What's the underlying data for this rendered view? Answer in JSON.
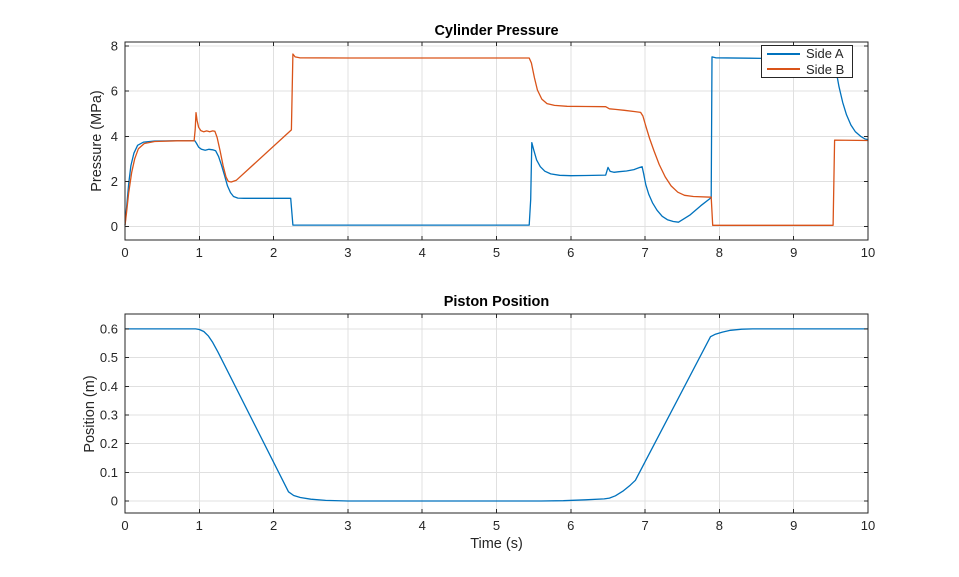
{
  "style": {
    "background": "#ffffff",
    "axis_color": "#262626",
    "grid_color": "#e0e0e0",
    "tick_label_color": "#262626",
    "title_color": "#000000"
  },
  "chart_data": [
    {
      "type": "line",
      "title": "Cylinder Pressure",
      "xlabel": "",
      "ylabel": "Pressure (MPa)",
      "xlim": [
        0,
        10
      ],
      "ylim": [
        -0.6,
        8.18
      ],
      "xticks": [
        0,
        1,
        2,
        3,
        4,
        5,
        6,
        7,
        8,
        9,
        10
      ],
      "xtick_labels": [
        "0",
        "1",
        "2",
        "3",
        "4",
        "5",
        "6",
        "7",
        "8",
        "9",
        "10"
      ],
      "yticks": [
        0,
        2,
        4,
        6,
        8
      ],
      "ytick_labels": [
        "0",
        "2",
        "4",
        "6",
        "8"
      ],
      "grid": true,
      "legend": {
        "position": "northeast",
        "entries": [
          "Side A",
          "Side B"
        ]
      },
      "series": [
        {
          "name": "Side A",
          "color": "#0072BD",
          "points": [
            [
              0,
              0.05
            ],
            [
              0.02,
              0.8
            ],
            [
              0.05,
              1.9
            ],
            [
              0.08,
              2.7
            ],
            [
              0.12,
              3.25
            ],
            [
              0.17,
              3.6
            ],
            [
              0.25,
              3.74
            ],
            [
              0.4,
              3.79
            ],
            [
              0.7,
              3.8
            ],
            [
              0.94,
              3.8
            ],
            [
              0.96,
              3.7
            ],
            [
              0.99,
              3.52
            ],
            [
              1.03,
              3.42
            ],
            [
              1.08,
              3.38
            ],
            [
              1.13,
              3.42
            ],
            [
              1.18,
              3.4
            ],
            [
              1.22,
              3.36
            ],
            [
              1.26,
              3.1
            ],
            [
              1.3,
              2.7
            ],
            [
              1.34,
              2.25
            ],
            [
              1.38,
              1.8
            ],
            [
              1.42,
              1.5
            ],
            [
              1.46,
              1.33
            ],
            [
              1.52,
              1.26
            ],
            [
              1.6,
              1.25
            ],
            [
              2.23,
              1.25
            ],
            [
              2.26,
              0.06
            ],
            [
              5.44,
              0.06
            ],
            [
              5.46,
              1.2
            ],
            [
              5.475,
              3.72
            ],
            [
              5.5,
              3.4
            ],
            [
              5.54,
              2.95
            ],
            [
              5.59,
              2.65
            ],
            [
              5.65,
              2.45
            ],
            [
              5.73,
              2.33
            ],
            [
              5.85,
              2.27
            ],
            [
              6.0,
              2.25
            ],
            [
              6.2,
              2.26
            ],
            [
              6.47,
              2.28
            ],
            [
              6.5,
              2.62
            ],
            [
              6.53,
              2.44
            ],
            [
              6.58,
              2.4
            ],
            [
              6.65,
              2.43
            ],
            [
              6.75,
              2.46
            ],
            [
              6.85,
              2.52
            ],
            [
              6.93,
              2.62
            ],
            [
              6.96,
              2.65
            ],
            [
              6.98,
              2.35
            ],
            [
              7.01,
              1.85
            ],
            [
              7.05,
              1.42
            ],
            [
              7.1,
              1.05
            ],
            [
              7.16,
              0.72
            ],
            [
              7.23,
              0.45
            ],
            [
              7.3,
              0.3
            ],
            [
              7.38,
              0.22
            ],
            [
              7.45,
              0.19
            ],
            [
              7.6,
              0.5
            ],
            [
              7.75,
              0.92
            ],
            [
              7.89,
              1.28
            ],
            [
              7.9,
              7.52
            ],
            [
              7.95,
              7.48
            ],
            [
              8.4,
              7.46
            ],
            [
              9.0,
              7.44
            ],
            [
              9.53,
              7.44
            ],
            [
              9.57,
              6.9
            ],
            [
              9.61,
              6.2
            ],
            [
              9.66,
              5.5
            ],
            [
              9.71,
              4.95
            ],
            [
              9.77,
              4.5
            ],
            [
              9.83,
              4.2
            ],
            [
              9.9,
              4.0
            ],
            [
              9.96,
              3.88
            ],
            [
              10,
              3.85
            ]
          ]
        },
        {
          "name": "Side B",
          "color": "#D95319",
          "points": [
            [
              0,
              0.05
            ],
            [
              0.02,
              0.6
            ],
            [
              0.05,
              1.5
            ],
            [
              0.09,
              2.4
            ],
            [
              0.13,
              3.0
            ],
            [
              0.18,
              3.45
            ],
            [
              0.26,
              3.68
            ],
            [
              0.4,
              3.77
            ],
            [
              0.7,
              3.8
            ],
            [
              0.93,
              3.8
            ],
            [
              0.945,
              4.3
            ],
            [
              0.955,
              5.05
            ],
            [
              0.97,
              4.7
            ],
            [
              0.99,
              4.4
            ],
            [
              1.02,
              4.25
            ],
            [
              1.06,
              4.2
            ],
            [
              1.1,
              4.24
            ],
            [
              1.14,
              4.2
            ],
            [
              1.18,
              4.24
            ],
            [
              1.21,
              4.22
            ],
            [
              1.24,
              3.95
            ],
            [
              1.28,
              3.35
            ],
            [
              1.32,
              2.7
            ],
            [
              1.36,
              2.2
            ],
            [
              1.39,
              2.0
            ],
            [
              1.43,
              1.97
            ],
            [
              1.5,
              2.05
            ],
            [
              2.24,
              4.28
            ],
            [
              2.26,
              7.65
            ],
            [
              2.29,
              7.52
            ],
            [
              2.35,
              7.48
            ],
            [
              3.0,
              7.47
            ],
            [
              5.44,
              7.47
            ],
            [
              5.47,
              7.25
            ],
            [
              5.51,
              6.6
            ],
            [
              5.55,
              6.05
            ],
            [
              5.61,
              5.65
            ],
            [
              5.68,
              5.45
            ],
            [
              5.78,
              5.37
            ],
            [
              5.95,
              5.33
            ],
            [
              6.2,
              5.32
            ],
            [
              6.47,
              5.31
            ],
            [
              6.52,
              5.22
            ],
            [
              6.6,
              5.19
            ],
            [
              6.72,
              5.15
            ],
            [
              6.85,
              5.1
            ],
            [
              6.94,
              5.06
            ],
            [
              6.97,
              4.9
            ],
            [
              7.01,
              4.45
            ],
            [
              7.06,
              3.9
            ],
            [
              7.12,
              3.35
            ],
            [
              7.19,
              2.75
            ],
            [
              7.27,
              2.2
            ],
            [
              7.35,
              1.8
            ],
            [
              7.44,
              1.52
            ],
            [
              7.53,
              1.38
            ],
            [
              7.65,
              1.33
            ],
            [
              7.89,
              1.3
            ],
            [
              7.91,
              0.05
            ],
            [
              9.53,
              0.05
            ],
            [
              9.55,
              3.83
            ],
            [
              10,
              3.81
            ]
          ]
        }
      ]
    },
    {
      "type": "line",
      "title": "Piston Position",
      "xlabel": "Time (s)",
      "ylabel": "Position (m)",
      "xlim": [
        0,
        10
      ],
      "ylim": [
        -0.042,
        0.652
      ],
      "xticks": [
        0,
        1,
        2,
        3,
        4,
        5,
        6,
        7,
        8,
        9,
        10
      ],
      "xtick_labels": [
        "0",
        "1",
        "2",
        "3",
        "4",
        "5",
        "6",
        "7",
        "8",
        "9",
        "10"
      ],
      "yticks": [
        0,
        0.1,
        0.2,
        0.3,
        0.4,
        0.5,
        0.6
      ],
      "ytick_labels": [
        "0",
        "0.1",
        "0.2",
        "0.3",
        "0.4",
        "0.5",
        "0.6"
      ],
      "grid": true,
      "series": [
        {
          "name": "Position",
          "color": "#0072BD",
          "points": [
            [
              0,
              0.6
            ],
            [
              0.95,
              0.6
            ],
            [
              1.0,
              0.598
            ],
            [
              1.06,
              0.591
            ],
            [
              1.12,
              0.576
            ],
            [
              1.18,
              0.553
            ],
            [
              1.25,
              0.52
            ],
            [
              2.2,
              0.032
            ],
            [
              2.27,
              0.019
            ],
            [
              2.36,
              0.012
            ],
            [
              2.5,
              0.006
            ],
            [
              2.7,
              0.002
            ],
            [
              3.0,
              0.0
            ],
            [
              5.6,
              0.0
            ],
            [
              5.9,
              0.001
            ],
            [
              6.2,
              0.004
            ],
            [
              6.45,
              0.007
            ],
            [
              6.52,
              0.01
            ],
            [
              6.6,
              0.018
            ],
            [
              6.7,
              0.034
            ],
            [
              6.8,
              0.055
            ],
            [
              6.87,
              0.072
            ],
            [
              7.88,
              0.573
            ],
            [
              7.94,
              0.581
            ],
            [
              8.04,
              0.589
            ],
            [
              8.15,
              0.595
            ],
            [
              8.3,
              0.599
            ],
            [
              8.45,
              0.6
            ],
            [
              10,
              0.6
            ]
          ]
        }
      ]
    }
  ]
}
